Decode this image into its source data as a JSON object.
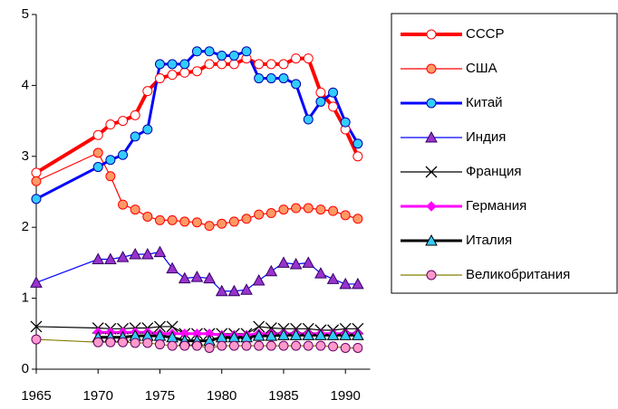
{
  "chart_data": {
    "type": "line",
    "x": [
      1965,
      1970,
      1971,
      1972,
      1973,
      1974,
      1975,
      1976,
      1977,
      1978,
      1979,
      1980,
      1981,
      1982,
      1983,
      1984,
      1985,
      1986,
      1987,
      1988,
      1989,
      1990,
      1991
    ],
    "xlim": [
      1965,
      1992
    ],
    "xticks": [
      1965,
      1970,
      1975,
      1980,
      1985,
      1990
    ],
    "ylim": [
      0,
      5
    ],
    "yticks": [
      0,
      1,
      2,
      3,
      4,
      5
    ],
    "series": [
      {
        "name": "СССР",
        "color": "#ff0000",
        "width": 4,
        "marker": "circle",
        "marker_fill": "#ffffff",
        "marker_edge": "#ff0000",
        "values": [
          2.77,
          3.3,
          3.45,
          3.5,
          3.58,
          3.92,
          4.1,
          4.15,
          4.18,
          4.2,
          4.3,
          4.3,
          4.3,
          4.38,
          4.3,
          4.3,
          4.3,
          4.38,
          4.38,
          3.9,
          3.7,
          3.38,
          3.0
        ]
      },
      {
        "name": "США",
        "color": "#ff0000",
        "width": 1.2,
        "marker": "circle",
        "marker_fill": "#ff9966",
        "marker_edge": "#ff0000",
        "values": [
          2.65,
          3.05,
          2.72,
          2.32,
          2.25,
          2.15,
          2.1,
          2.1,
          2.08,
          2.07,
          2.02,
          2.05,
          2.08,
          2.12,
          2.18,
          2.2,
          2.25,
          2.27,
          2.27,
          2.25,
          2.23,
          2.17,
          2.12
        ]
      },
      {
        "name": "Китай",
        "color": "#0000ff",
        "width": 3,
        "marker": "circle",
        "marker_fill": "#33ccff",
        "marker_edge": "#0000aa",
        "values": [
          2.4,
          2.85,
          2.95,
          3.02,
          3.28,
          3.38,
          4.3,
          4.3,
          4.3,
          4.48,
          4.48,
          4.42,
          4.42,
          4.48,
          4.1,
          4.1,
          4.1,
          4.02,
          3.52,
          3.77,
          3.9,
          3.48,
          3.18
        ]
      },
      {
        "name": "Индия",
        "color": "#0000ff",
        "width": 1.2,
        "marker": "triangle",
        "marker_fill": "#9933cc",
        "marker_edge": "#330066",
        "values": [
          1.22,
          1.55,
          1.55,
          1.58,
          1.62,
          1.62,
          1.65,
          1.42,
          1.28,
          1.3,
          1.28,
          1.1,
          1.1,
          1.12,
          1.25,
          1.38,
          1.5,
          1.48,
          1.5,
          1.35,
          1.27,
          1.2,
          1.2
        ]
      },
      {
        "name": "Франция",
        "color": "#000000",
        "width": 1.2,
        "marker": "x",
        "marker_fill": "none",
        "marker_edge": "#000000",
        "values": [
          0.6,
          0.58,
          0.57,
          0.57,
          0.58,
          0.58,
          0.6,
          0.6,
          0.5,
          0.5,
          0.5,
          0.5,
          0.5,
          0.5,
          0.6,
          0.58,
          0.57,
          0.57,
          0.57,
          0.55,
          0.55,
          0.57,
          0.57
        ]
      },
      {
        "name": "Германия",
        "color": "#ff00ff",
        "width": 3,
        "marker": "diamond",
        "marker_fill": "#ff00ff",
        "marker_edge": "#ff00ff",
        "values": [
          null,
          0.52,
          0.52,
          0.52,
          0.52,
          0.52,
          0.5,
          0.5,
          0.5,
          0.5,
          0.5,
          0.48,
          0.48,
          0.48,
          0.5,
          0.5,
          0.5,
          0.5,
          0.5,
          0.5,
          0.5,
          0.5,
          0.5
        ]
      },
      {
        "name": "Италия",
        "color": "#000000",
        "width": 3,
        "marker": "triangle",
        "marker_fill": "#33ccff",
        "marker_edge": "#000000",
        "values": [
          null,
          0.45,
          0.45,
          0.45,
          0.47,
          0.47,
          0.47,
          0.45,
          0.4,
          0.4,
          0.4,
          0.45,
          0.45,
          0.45,
          0.47,
          0.47,
          0.48,
          0.48,
          0.48,
          0.48,
          0.48,
          0.48,
          0.48
        ]
      },
      {
        "name": "Великобритания",
        "color": "#808000",
        "width": 1.2,
        "marker": "circle",
        "marker_fill": "#ff99cc",
        "marker_edge": "#660066",
        "values": [
          0.42,
          0.38,
          0.38,
          0.38,
          0.37,
          0.37,
          0.35,
          0.33,
          0.33,
          0.33,
          0.3,
          0.33,
          0.33,
          0.33,
          0.33,
          0.33,
          0.33,
          0.33,
          0.33,
          0.33,
          0.32,
          0.3,
          0.3
        ]
      }
    ]
  }
}
